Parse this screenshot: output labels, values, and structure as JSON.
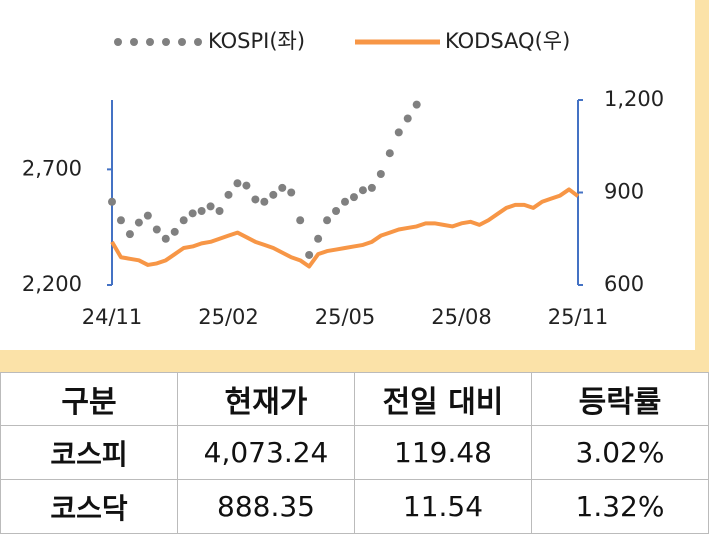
{
  "chart_data": {
    "type": "line",
    "categories": [
      "24/11",
      null,
      null,
      null,
      null,
      null,
      null,
      null,
      null,
      null,
      null,
      null,
      null,
      "25/02",
      null,
      null,
      null,
      null,
      null,
      null,
      null,
      null,
      null,
      null,
      null,
      null,
      "25/05",
      null,
      null,
      null,
      null,
      null,
      null,
      null,
      null,
      null,
      null,
      null,
      null,
      "25/08",
      null,
      null,
      null,
      null,
      null,
      null,
      null,
      null,
      null,
      null,
      null,
      null,
      "25/11"
    ],
    "series": [
      {
        "name": "KOSPI(좌)",
        "color": "#808080",
        "style": "dotted",
        "values": [
          2560,
          2480,
          2420,
          2470,
          2500,
          2440,
          2400,
          2430,
          2480,
          2510,
          2520,
          2540,
          2520,
          2590,
          2640,
          2630,
          2570,
          2560,
          2590,
          2620,
          2600,
          2480,
          2330,
          2400,
          2480,
          2520,
          2560,
          2580,
          2610,
          2620,
          2680,
          2770,
          2860,
          2920,
          2980,
          null,
          null,
          null,
          null,
          null,
          null,
          null,
          null,
          null,
          null,
          null,
          null,
          null,
          null,
          null,
          null,
          null,
          null
        ]
      },
      {
        "name": "KODSAQ(우)",
        "color": "#f79646",
        "style": "solid",
        "axis": "y2",
        "values": [
          740,
          690,
          685,
          680,
          665,
          670,
          680,
          700,
          720,
          725,
          735,
          740,
          750,
          760,
          770,
          755,
          740,
          730,
          720,
          705,
          690,
          680,
          660,
          700,
          710,
          715,
          720,
          725,
          730,
          740,
          760,
          770,
          780,
          785,
          790,
          800,
          800,
          795,
          790,
          800,
          805,
          795,
          810,
          830,
          850,
          860,
          860,
          850,
          870,
          880,
          890,
          910,
          888
        ]
      }
    ],
    "ylim": [
      2200,
      3000
    ],
    "yticks": [
      {
        "value": 2200,
        "label": "2,200"
      },
      {
        "value": 2700,
        "label": "2,700"
      }
    ],
    "y2lim": [
      600,
      1200
    ],
    "y2ticks": [
      600,
      900,
      {
        "value": 1200,
        "label": "1,200"
      }
    ],
    "axis_color": "#4472c4",
    "legend": "top"
  },
  "table": {
    "header": [
      "구분",
      "현재가",
      "전일 대비",
      "등락률"
    ],
    "rows": [
      [
        "코스피",
        "4,073.24",
        "119.48",
        "3.02%"
      ],
      [
        "코스닥",
        "888.35",
        "11.54",
        "1.32%"
      ]
    ]
  }
}
